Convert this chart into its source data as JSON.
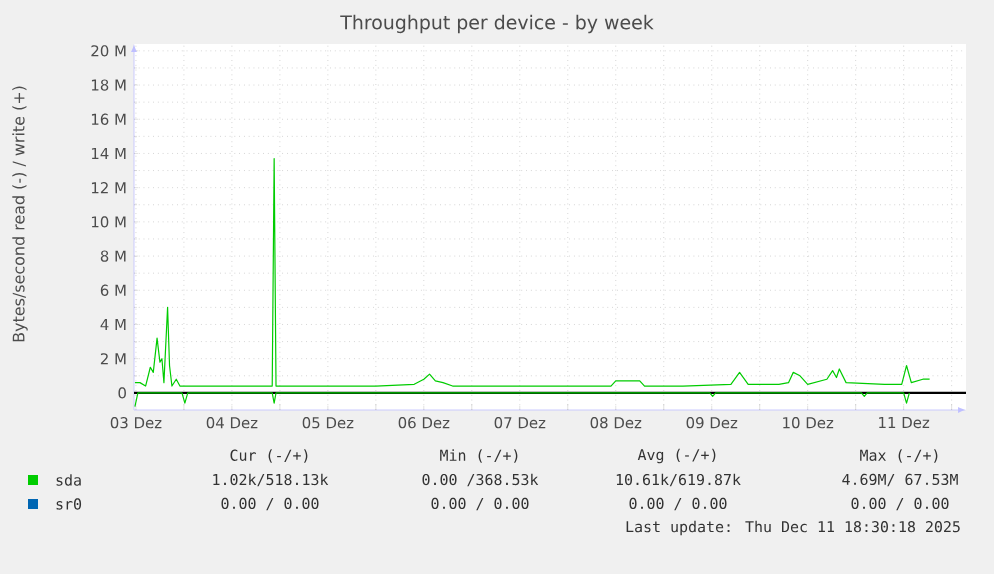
{
  "chart_data": {
    "type": "line",
    "title": "Throughput per device - by week",
    "ylabel": "Bytes/second read (-) / write (+)",
    "xlim": [
      "2025-12-03T11:31",
      "2025-12-12T03:36"
    ],
    "xticks": [
      {
        "value": "2025-12-03T12:00",
        "label": "03 Dez"
      },
      {
        "value": "2025-12-04T12:00",
        "label": "04 Dez"
      },
      {
        "value": "2025-12-05T12:00",
        "label": "05 Dez"
      },
      {
        "value": "2025-12-06T12:00",
        "label": "06 Dez"
      },
      {
        "value": "2025-12-07T12:00",
        "label": "07 Dez"
      },
      {
        "value": "2025-12-08T12:00",
        "label": "08 Dez"
      },
      {
        "value": "2025-12-09T12:00",
        "label": "09 Dez"
      },
      {
        "value": "2025-12-10T12:00",
        "label": "10 Dez"
      },
      {
        "value": "2025-12-11T12:00",
        "label": "11 Dez"
      },
      {
        "value": "2025-12-04T00:00",
        "label": null
      },
      {
        "value": "2025-12-05T00:00",
        "label": null
      },
      {
        "value": "2025-12-06T00:00",
        "label": null
      },
      {
        "value": "2025-12-07T00:00",
        "label": null
      },
      {
        "value": "2025-12-08T00:00",
        "label": null
      },
      {
        "value": "2025-12-09T00:00",
        "label": null
      },
      {
        "value": "2025-12-10T00:00",
        "label": null
      },
      {
        "value": "2025-12-11T00:00",
        "label": null
      },
      {
        "value": "2025-12-12T00:00",
        "label": null
      }
    ],
    "ylim": [
      -1,
      20.4
    ],
    "yticks": [
      0,
      {
        "value": 2,
        "label": "2 M"
      },
      {
        "value": 4,
        "label": "4 M"
      },
      {
        "value": 6,
        "label": "6 M"
      },
      {
        "value": 8,
        "label": "8 M"
      },
      {
        "value": 10,
        "label": "10 M"
      },
      {
        "value": 12,
        "label": "12 M"
      },
      {
        "value": 14,
        "label": "14 M"
      },
      {
        "value": 16,
        "label": "16 M"
      },
      {
        "value": 18,
        "label": "18 M"
      },
      {
        "value": 20,
        "label": "20 M"
      }
    ],
    "grid": true,
    "legend": "bottom left",
    "series": [
      {
        "name": "sda",
        "color": "#00cc00",
        "x": [
          "2025-12-03T11:45",
          "2025-12-03T13:00",
          "2025-12-03T14:25",
          "2025-12-03T15:36",
          "2025-12-03T16:20",
          "2025-12-03T17:17",
          "2025-12-03T18:00",
          "2025-12-03T18:30",
          "2025-12-03T19:00",
          "2025-12-03T19:55",
          "2025-12-03T20:24",
          "2025-12-03T21:00",
          "2025-12-03T22:05",
          "2025-12-03T23:00",
          "2025-12-04T04:48",
          "2025-12-04T12:00",
          "2025-12-04T22:05",
          "2025-12-04T22:34",
          "2025-12-04T23:02",
          "2025-12-05T12:00",
          "2025-12-06T00:00",
          "2025-12-06T09:36",
          "2025-12-06T12:00",
          "2025-12-06T13:26",
          "2025-12-06T14:53",
          "2025-12-06T16:48",
          "2025-12-06T19:12",
          "2025-12-07T04:48",
          "2025-12-07T14:24",
          "2025-12-08T00:00",
          "2025-12-08T10:48",
          "2025-12-08T12:00",
          "2025-12-08T18:00",
          "2025-12-08T19:12",
          "2025-12-09T04:48",
          "2025-12-09T16:48",
          "2025-12-09T18:58",
          "2025-12-09T21:07",
          "2025-12-10T04:48",
          "2025-12-10T07:12",
          "2025-12-10T08:24",
          "2025-12-10T10:05",
          "2025-12-10T12:00",
          "2025-12-10T16:48",
          "2025-12-10T18:14",
          "2025-12-10T19:12",
          "2025-12-10T19:55",
          "2025-12-10T21:36",
          "2025-12-11T07:12",
          "2025-12-11T11:31",
          "2025-12-11T12:43",
          "2025-12-11T13:55",
          "2025-12-11T16:48",
          "2025-12-11T18:30"
        ],
        "values": [
          0.6,
          0.6,
          0.4,
          1.5,
          1.2,
          3.2,
          1.8,
          2.0,
          0.6,
          5.0,
          1.6,
          0.4,
          0.8,
          0.4,
          0.4,
          0.4,
          0.4,
          13.7,
          0.4,
          0.4,
          0.4,
          0.5,
          0.8,
          1.1,
          0.7,
          0.6,
          0.4,
          0.4,
          0.4,
          0.4,
          0.4,
          0.7,
          0.7,
          0.4,
          0.4,
          0.5,
          1.2,
          0.5,
          0.5,
          0.6,
          1.2,
          1.0,
          0.5,
          0.8,
          1.3,
          0.9,
          1.4,
          0.6,
          0.5,
          0.5,
          1.6,
          0.6,
          0.8,
          0.8
        ]
      },
      {
        "color": "#00cc00",
        "x": [
          "2025-12-03T11:45",
          "2025-12-03T12:29",
          "2025-12-03T14:24",
          "2025-12-03T23:31",
          "2025-12-04T00:14",
          "2025-12-04T00:58",
          "2025-12-04T22:05",
          "2025-12-04T22:34",
          "2025-12-04T23:02",
          "2025-12-09T11:31",
          "2025-12-09T12:14",
          "2025-12-09T12:58",
          "2025-12-11T01:26",
          "2025-12-11T02:10",
          "2025-12-11T02:53",
          "2025-12-11T12:00",
          "2025-12-11T12:43",
          "2025-12-11T13:26"
        ],
        "values": [
          -0.8,
          0,
          0,
          0,
          -0.6,
          0,
          0,
          -0.6,
          0,
          0,
          -0.2,
          0,
          0,
          -0.2,
          0,
          0,
          -0.6,
          0
        ]
      },
      {
        "name": "sr0",
        "color": "#0066b3"
      }
    ],
    "ref_lines": [
      {
        "axis": "y",
        "value": 0,
        "color": "#000000"
      }
    ],
    "annotations": [
      "Cur (-/+)",
      "Min (-/+)",
      "Avg (-/+)",
      "Max (-/+)",
      "1.02k/518.13k",
      "0.00 /368.53k",
      "10.61k/619.87k",
      "4.69M/ 67.53M",
      "0.00 /  0.00",
      "0.00 /  0.00",
      "0.00 /  0.00",
      "0.00 /  0.00",
      "Last update: Thu Dec 11 18:30:18 2025"
    ]
  }
}
